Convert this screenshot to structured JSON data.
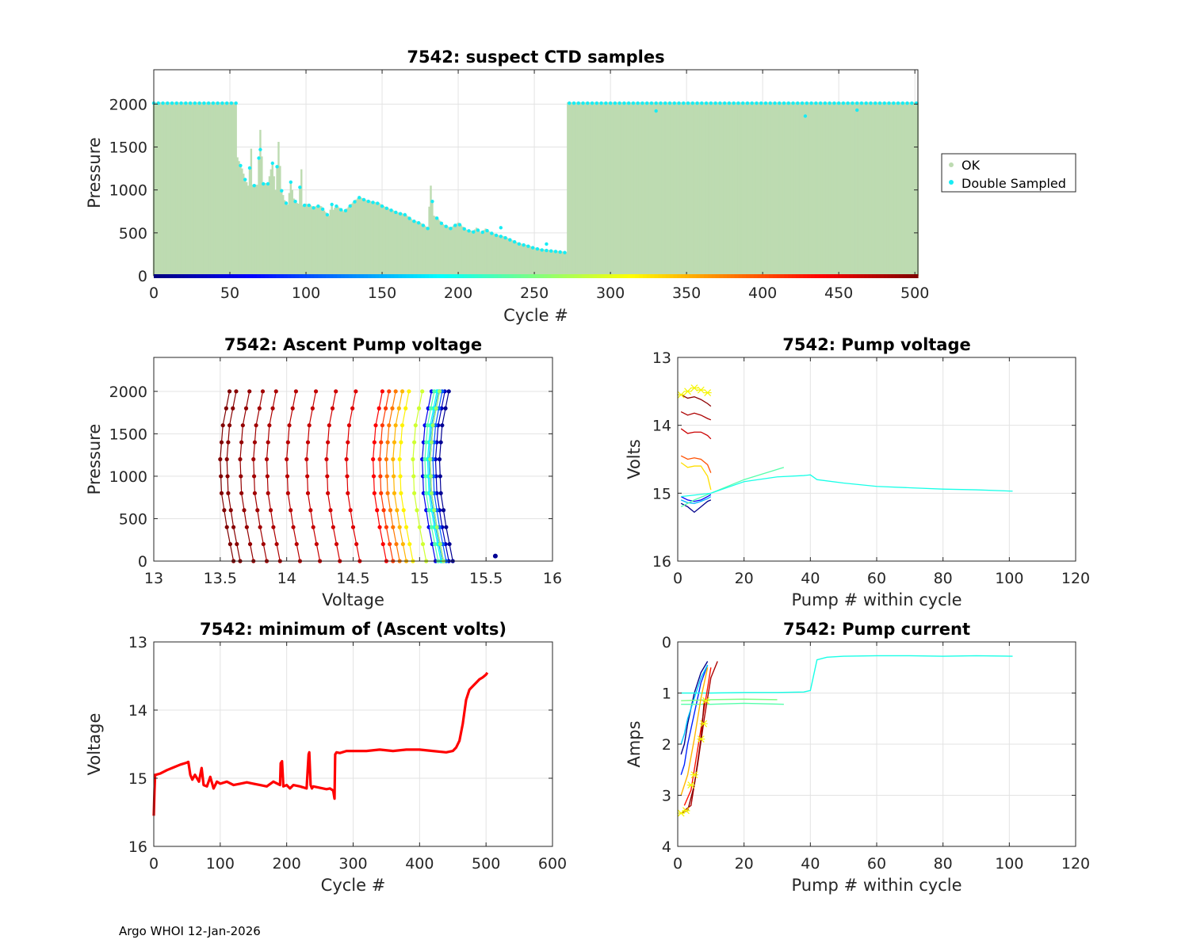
{
  "footer": "Argo WHOI 12-Jan-2026",
  "colorbar": {
    "ticks": [
      0,
      50,
      100,
      150,
      200,
      250,
      300,
      350,
      400,
      450,
      500
    ],
    "colormap": "jet"
  },
  "colors": {
    "ok": "#bddbb1",
    "double": "#17ecf4",
    "red": "#ff0000",
    "yellow": "#f5f500"
  },
  "chart_data": [
    {
      "id": "ctd",
      "type": "scatter",
      "title": "7542: suspect CTD samples",
      "xlabel": "Cycle #",
      "ylabel": "Pressure",
      "xlim": [
        0,
        502
      ],
      "ylim": [
        2400,
        0
      ],
      "xticks": [
        0,
        50,
        100,
        150,
        200,
        250,
        300,
        350,
        400,
        450,
        500
      ],
      "yticks": [
        0,
        500,
        1000,
        1500,
        2000
      ],
      "legend": [
        "OK",
        "Double Sampled"
      ],
      "legend_position": "outside-right",
      "profile_depth": {
        "cycles": [
          0,
          54,
          55,
          58,
          60,
          62,
          64,
          65,
          68,
          70,
          72,
          74,
          75,
          78,
          80,
          82,
          84,
          86,
          88,
          90,
          92,
          94,
          95,
          97,
          98,
          100,
          102,
          105,
          108,
          110,
          112,
          115,
          117,
          118,
          120,
          125,
          130,
          135,
          140,
          145,
          148,
          150,
          155,
          160,
          165,
          170,
          175,
          180,
          182,
          184,
          186,
          190,
          195,
          200,
          205,
          210,
          212,
          215,
          218,
          220,
          225,
          230,
          235,
          240,
          245,
          250,
          255,
          260,
          265,
          270,
          271,
          272,
          502
        ],
        "pressure": [
          2020,
          2020,
          1380,
          1250,
          1130,
          1050,
          1480,
          1060,
          1060,
          1700,
          1080,
          1080,
          1080,
          1320,
          1000,
          1560,
          1000,
          880,
          830,
          1100,
          900,
          850,
          840,
          1240,
          820,
          840,
          830,
          800,
          820,
          810,
          760,
          700,
          840,
          770,
          820,
          750,
          840,
          920,
          880,
          860,
          850,
          820,
          780,
          740,
          720,
          650,
          620,
          560,
          1050,
          700,
          680,
          600,
          560,
          620,
          540,
          520,
          560,
          500,
          550,
          520,
          480,
          460,
          420,
          380,
          360,
          330,
          310,
          300,
          290,
          280,
          275,
          2020,
          2020
        ]
      },
      "double_sampled_points": [
        [
          70,
          1470
        ],
        [
          228,
          560
        ],
        [
          258,
          370
        ],
        [
          330,
          1920
        ],
        [
          428,
          1860
        ],
        [
          462,
          1930
        ]
      ]
    },
    {
      "id": "ascent",
      "type": "line",
      "title": "7542: Ascent Pump voltage",
      "xlabel": "Voltage",
      "ylabel": "Pressure",
      "xlim": [
        13,
        16
      ],
      "ylim": [
        2400,
        0
      ],
      "xticks": [
        13,
        13.5,
        14,
        14.5,
        15,
        15.5,
        16
      ],
      "yticks": [
        0,
        500,
        1000,
        1500,
        2000
      ],
      "profile_shape": {
        "pressure": [
          0,
          400,
          800,
          1200,
          1600,
          2000
        ],
        "offset": [
          0,
          -0.05,
          -0.09,
          -0.1,
          -0.08,
          -0.03
        ]
      },
      "series": [
        {
          "cycle": 10,
          "surface_volts": 15.25
        },
        {
          "cycle": 30,
          "surface_volts": 15.22
        },
        {
          "cycle": 55,
          "surface_volts": 15.12
        },
        {
          "cycle": 80,
          "surface_volts": 15.18
        },
        {
          "cycle": 110,
          "surface_volts": 15.2
        },
        {
          "cycle": 150,
          "surface_volts": 15.17
        },
        {
          "cycle": 190,
          "surface_volts": 15.16
        },
        {
          "cycle": 230,
          "surface_volts": 15.14
        },
        {
          "cycle": 265,
          "surface_volts": 15.18
        },
        {
          "cycle": 290,
          "surface_volts": 15.05
        },
        {
          "cycle": 320,
          "surface_volts": 14.95
        },
        {
          "cycle": 350,
          "surface_volts": 14.9
        },
        {
          "cycle": 380,
          "surface_volts": 14.85
        },
        {
          "cycle": 410,
          "surface_volts": 14.8
        },
        {
          "cycle": 440,
          "surface_volts": 14.75
        },
        {
          "cycle": 455,
          "surface_volts": 14.55
        },
        {
          "cycle": 462,
          "surface_volts": 14.4
        },
        {
          "cycle": 468,
          "surface_volts": 14.25
        },
        {
          "cycle": 474,
          "surface_volts": 14.1
        },
        {
          "cycle": 480,
          "surface_volts": 13.95
        },
        {
          "cycle": 486,
          "surface_volts": 13.85
        },
        {
          "cycle": 492,
          "surface_volts": 13.75
        },
        {
          "cycle": 498,
          "surface_volts": 13.65
        },
        {
          "cycle": 502,
          "surface_volts": 13.6
        }
      ],
      "outlier_point": {
        "cycle": 10,
        "voltage": 15.57,
        "pressure": 60
      }
    },
    {
      "id": "pumpv",
      "type": "line",
      "title": "7542: Pump voltage",
      "xlabel": "Pump # within cycle",
      "ylabel": "Volts",
      "xlim": [
        0,
        120
      ],
      "ylim": [
        13,
        16
      ],
      "xticks": [
        0,
        20,
        40,
        60,
        80,
        100,
        120
      ],
      "yticks": [
        13,
        14,
        15,
        16
      ],
      "series": [
        {
          "cycle": 5,
          "x": [
            1,
            3,
            5,
            7,
            9,
            10
          ],
          "y": [
            15.15,
            15.2,
            15.28,
            15.2,
            15.12,
            15.1
          ]
        },
        {
          "cycle": 60,
          "x": [
            1,
            3,
            5,
            7,
            9,
            10
          ],
          "y": [
            15.05,
            15.1,
            15.12,
            15.1,
            15.05,
            15.02
          ]
        },
        {
          "cycle": 150,
          "x": [
            1,
            3,
            5,
            7,
            9,
            10
          ],
          "y": [
            15.1,
            15.14,
            15.15,
            15.12,
            15.08,
            15.05
          ]
        },
        {
          "cycle": 230,
          "x": [
            1,
            5,
            10,
            20,
            32
          ],
          "y": [
            15.2,
            15.1,
            15.0,
            14.8,
            14.62
          ]
        },
        {
          "cycle": 200,
          "x": [
            1,
            10,
            20,
            30,
            38,
            40,
            42,
            50,
            60,
            70,
            80,
            90,
            101
          ],
          "y": [
            15.05,
            15.0,
            14.83,
            14.76,
            14.74,
            14.73,
            14.8,
            14.85,
            14.9,
            14.92,
            14.94,
            14.95,
            14.97
          ]
        },
        {
          "cycle": 330,
          "x": [
            1,
            3,
            5,
            7,
            9,
            10
          ],
          "y": [
            14.55,
            14.62,
            14.6,
            14.6,
            14.75,
            14.95
          ]
        },
        {
          "cycle": 400,
          "x": [
            1,
            3,
            5,
            7,
            9,
            10
          ],
          "y": [
            14.45,
            14.5,
            14.48,
            14.5,
            14.58,
            14.7
          ]
        },
        {
          "cycle": 465,
          "x": [
            1,
            3,
            5,
            7,
            9,
            10
          ],
          "y": [
            14.05,
            14.12,
            14.1,
            14.1,
            14.15,
            14.2
          ]
        },
        {
          "cycle": 480,
          "x": [
            1,
            3,
            5,
            7,
            9,
            10
          ],
          "y": [
            13.8,
            13.85,
            13.82,
            13.85,
            13.9,
            13.92
          ]
        },
        {
          "cycle": 495,
          "x": [
            1,
            3,
            5,
            7,
            9,
            10
          ],
          "y": [
            13.55,
            13.6,
            13.58,
            13.62,
            13.68,
            13.72
          ]
        }
      ],
      "min_markers": [
        [
          1,
          13.55
        ],
        [
          3,
          13.5
        ],
        [
          5,
          13.45
        ],
        [
          7,
          13.48
        ],
        [
          9,
          13.52
        ]
      ]
    },
    {
      "id": "minv",
      "type": "line",
      "title": "7542: minimum of (Ascent volts)",
      "xlabel": "Cycle #",
      "ylabel": "Voltage",
      "xlim": [
        0,
        600
      ],
      "ylim": [
        13,
        16
      ],
      "xticks": [
        0,
        100,
        200,
        300,
        400,
        500,
        600
      ],
      "yticks": [
        13,
        14,
        15,
        16
      ],
      "x": [
        0,
        1,
        2,
        3,
        10,
        20,
        30,
        40,
        50,
        52,
        55,
        58,
        62,
        68,
        72,
        75,
        80,
        85,
        90,
        95,
        100,
        110,
        120,
        130,
        140,
        150,
        160,
        170,
        180,
        190,
        191,
        193,
        195,
        200,
        205,
        210,
        220,
        230,
        233,
        234,
        236,
        238,
        240,
        250,
        260,
        265,
        270,
        272,
        273,
        275,
        280,
        290,
        300,
        320,
        340,
        360,
        380,
        400,
        420,
        440,
        450,
        455,
        460,
        465,
        470,
        475,
        480,
        485,
        490,
        495,
        500,
        502
      ],
      "y": [
        15.55,
        15.2,
        14.95,
        14.95,
        14.93,
        14.88,
        14.84,
        14.8,
        14.77,
        14.76,
        14.95,
        15.02,
        14.95,
        15.05,
        14.85,
        15.1,
        15.12,
        14.98,
        15.15,
        15.05,
        15.08,
        15.05,
        15.1,
        15.08,
        15.06,
        15.08,
        15.1,
        15.12,
        15.05,
        15.1,
        14.78,
        14.75,
        15.12,
        15.1,
        15.15,
        15.1,
        15.12,
        15.15,
        14.65,
        14.62,
        15.1,
        15.15,
        15.12,
        15.14,
        15.16,
        15.15,
        15.18,
        15.3,
        14.65,
        14.62,
        14.63,
        14.6,
        14.6,
        14.6,
        14.58,
        14.6,
        14.58,
        14.58,
        14.6,
        14.62,
        14.6,
        14.55,
        14.45,
        14.2,
        13.85,
        13.7,
        13.65,
        13.6,
        13.55,
        13.52,
        13.48,
        13.45
      ]
    },
    {
      "id": "current",
      "type": "line",
      "title": "7542: Pump current",
      "xlabel": "Pump # within cycle",
      "ylabel": "Amps",
      "xlim": [
        0,
        120
      ],
      "ylim": [
        0,
        4
      ],
      "xticks": [
        0,
        20,
        40,
        60,
        80,
        100,
        120
      ],
      "yticks": [
        0,
        1,
        2,
        3,
        4
      ],
      "series": [
        {
          "cycle": 5,
          "x": [
            1,
            2,
            3,
            5,
            7,
            9
          ],
          "y": [
            2.2,
            2.0,
            1.6,
            1.0,
            0.6,
            0.38
          ]
        },
        {
          "cycle": 80,
          "x": [
            1,
            2,
            3,
            5,
            7,
            9
          ],
          "y": [
            2.6,
            2.4,
            2.0,
            1.4,
            0.8,
            0.45
          ]
        },
        {
          "cycle": 160,
          "x": [
            1,
            2,
            3,
            5,
            7,
            9
          ],
          "y": [
            2.0,
            1.8,
            1.5,
            1.1,
            0.7,
            0.45
          ]
        },
        {
          "cycle": 230,
          "x": [
            1,
            10,
            20,
            32
          ],
          "y": [
            1.22,
            1.22,
            1.2,
            1.22
          ]
        },
        {
          "cycle": 250,
          "x": [
            1,
            10,
            20,
            30
          ],
          "y": [
            1.15,
            1.13,
            1.12,
            1.13
          ]
        },
        {
          "cycle": 200,
          "x": [
            1,
            10,
            20,
            30,
            38,
            40,
            42,
            45,
            50,
            60,
            70,
            80,
            90,
            101
          ],
          "y": [
            1.0,
            1.0,
            0.99,
            0.99,
            0.98,
            0.95,
            0.35,
            0.3,
            0.28,
            0.27,
            0.27,
            0.28,
            0.27,
            0.28
          ]
        },
        {
          "cycle": 350,
          "x": [
            1,
            3,
            5,
            7,
            9
          ],
          "y": [
            3.0,
            2.6,
            1.9,
            1.1,
            0.5
          ]
        },
        {
          "cycle": 430,
          "x": [
            2,
            4,
            6,
            8,
            10
          ],
          "y": [
            3.2,
            2.9,
            2.1,
            1.3,
            0.5
          ]
        },
        {
          "cycle": 480,
          "x": [
            2,
            4,
            6,
            8,
            10,
            12
          ],
          "y": [
            3.3,
            3.2,
            2.4,
            1.5,
            0.7,
            0.38
          ]
        },
        {
          "cycle": 500,
          "x": [
            1,
            3,
            5,
            7,
            8
          ],
          "y": [
            3.35,
            3.3,
            2.8,
            1.9,
            1.15
          ]
        }
      ],
      "markers": [
        [
          1,
          3.35
        ],
        [
          2.5,
          3.3
        ],
        [
          4,
          2.8
        ],
        [
          5,
          2.6
        ],
        [
          7,
          1.9
        ],
        [
          7.8,
          1.6
        ],
        [
          8.5,
          1.15
        ]
      ]
    }
  ]
}
